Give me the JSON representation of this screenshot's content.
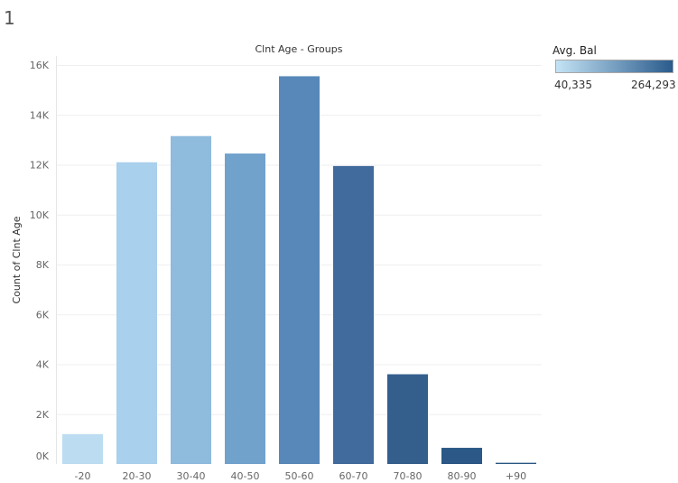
{
  "sheet": {
    "number": "1"
  },
  "legend": {
    "title": "Avg. Bal",
    "min_label": "40,335",
    "max_label": "264,293",
    "min_color": "#c4e3f5",
    "max_color": "#2a5b8c"
  },
  "chart_data": {
    "type": "bar",
    "title": "Clnt Age - Groups",
    "xlabel": "",
    "ylabel": "Count of Clnt Age",
    "categories": [
      "-20",
      "20-30",
      "30-40",
      "40-50",
      "50-60",
      "60-70",
      "70-80",
      "80-90",
      "+90"
    ],
    "values": [
      1200,
      12100,
      13150,
      12450,
      15550,
      11950,
      3600,
      650,
      50
    ],
    "colors": [
      "#bcdcf1",
      "#a9d0ec",
      "#8fbbdd",
      "#71a2cc",
      "#5888b9",
      "#426b9d",
      "#345f8d",
      "#2b5886",
      "#2a5681"
    ],
    "ylim": [
      0,
      16000
    ],
    "yticks": [
      0,
      2000,
      4000,
      6000,
      8000,
      10000,
      12000,
      14000,
      16000
    ],
    "ytick_labels": [
      "0K",
      "2K",
      "4K",
      "6K",
      "8K",
      "10K",
      "12K",
      "14K",
      "16K"
    ],
    "grid": true,
    "legend_position": "top-right"
  }
}
